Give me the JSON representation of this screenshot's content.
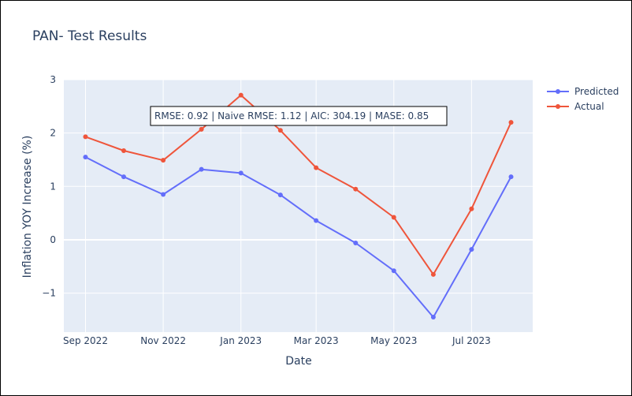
{
  "chart_data": {
    "type": "line",
    "title": "PAN- Test Results",
    "xlabel": "Date",
    "ylabel": "Inflation YOY Increase (%)",
    "x": [
      "2022-09",
      "2022-10",
      "2022-11",
      "2022-12",
      "2023-01",
      "2023-02",
      "2023-03",
      "2023-04",
      "2023-05",
      "2023-06",
      "2023-07",
      "2023-08"
    ],
    "x_ticks": [
      {
        "label": "Sep 2022",
        "at": "2022-09"
      },
      {
        "label": "Nov 2022",
        "at": "2022-11"
      },
      {
        "label": "Jan 2023",
        "at": "2023-01"
      },
      {
        "label": "Mar 2023",
        "at": "2023-03"
      },
      {
        "label": "May 2023",
        "at": "2023-05"
      },
      {
        "label": "Jul 2023",
        "at": "2023-07"
      }
    ],
    "xlim": [
      "2022-08-15",
      "2023-08-18"
    ],
    "y_ticks": [
      {
        "label": "3",
        "value": 3
      },
      {
        "label": "2",
        "value": 2
      },
      {
        "label": "1",
        "value": 1
      },
      {
        "label": "0",
        "value": 0
      },
      {
        "label": "−1",
        "value": -1
      }
    ],
    "ylim": [
      -1.73,
      3.0
    ],
    "grid": true,
    "legend": "top-right",
    "series": [
      {
        "name": "Predicted",
        "color": "#636efa",
        "values": [
          1.55,
          1.18,
          0.85,
          1.32,
          1.25,
          0.84,
          0.36,
          -0.06,
          -0.58,
          -1.45,
          -0.18,
          1.18
        ]
      },
      {
        "name": "Actual",
        "color": "#ef553b",
        "values": [
          1.93,
          1.67,
          1.49,
          2.07,
          2.71,
          2.05,
          1.35,
          0.95,
          0.42,
          -0.65,
          0.58,
          2.2
        ]
      }
    ],
    "annotation": "RMSE: 0.92 | Naive RMSE: 1.12 | AIC: 304.19 | MASE: 0.85",
    "colors": {
      "plot_bg": "#e5ecf6",
      "grid": "#ffffff",
      "text": "#2a3f5f"
    }
  }
}
